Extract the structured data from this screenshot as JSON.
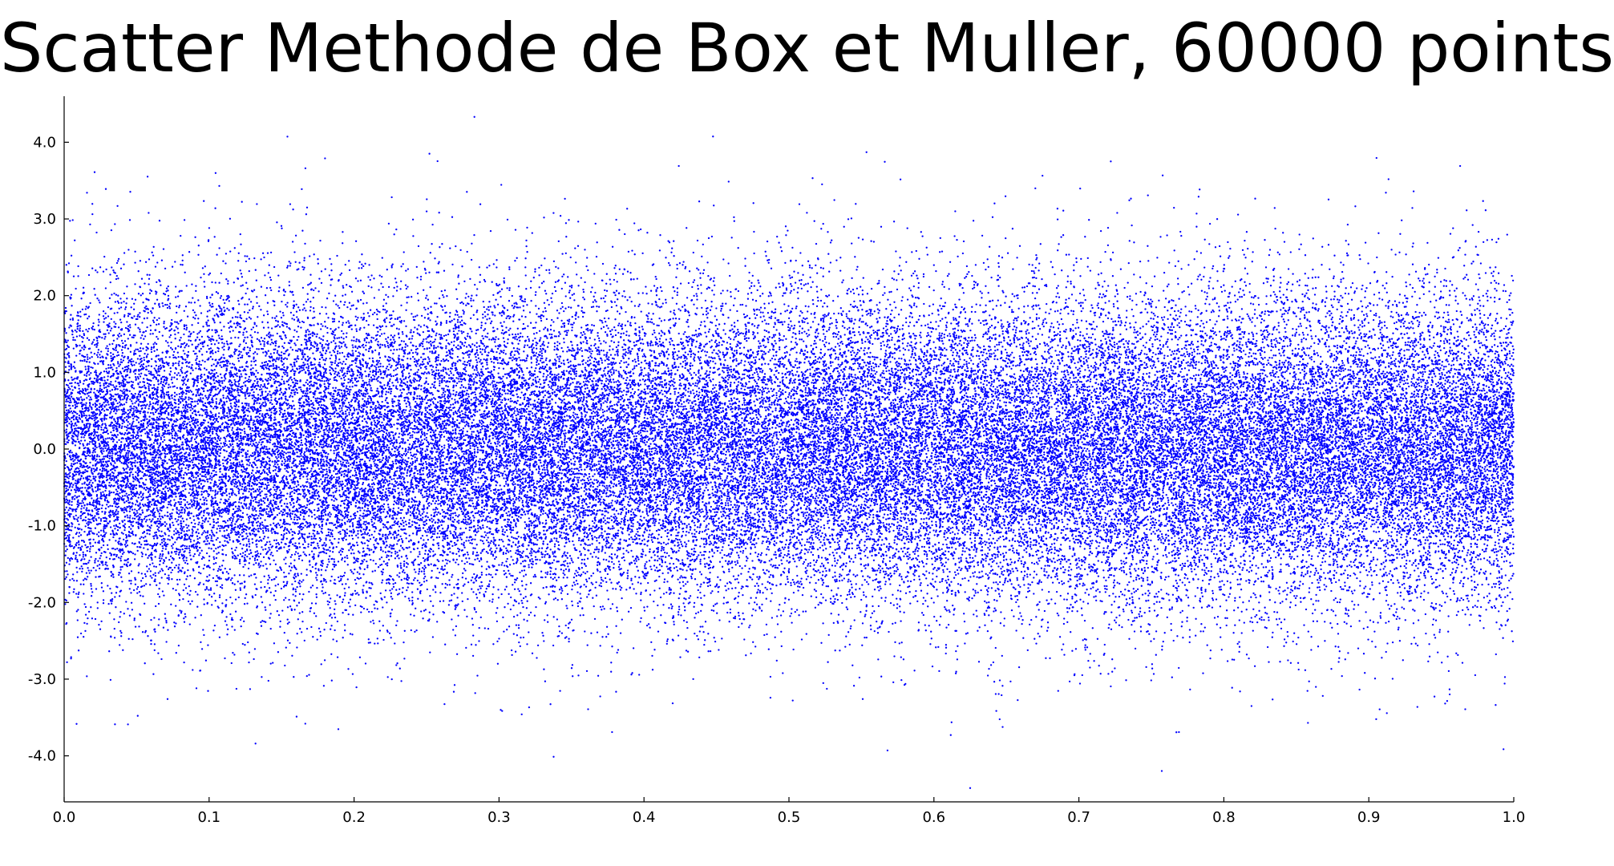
{
  "chart_data": {
    "type": "scatter",
    "title": "Scatter Methode de Box et Muller, 60000 points",
    "xlabel": "",
    "ylabel": "",
    "xlim": [
      0.0,
      1.0
    ],
    "ylim": [
      -4.6,
      4.6
    ],
    "x_ticks": [
      "0.0",
      "0.1",
      "0.2",
      "0.3",
      "0.4",
      "0.5",
      "0.6",
      "0.7",
      "0.8",
      "0.9",
      "1.0"
    ],
    "y_ticks": [
      "4.0",
      "3.0",
      "2.0",
      "1.0",
      "0.0",
      "-1.0",
      "-2.0",
      "-3.0",
      "-4.0"
    ],
    "x_tick_values": [
      0.0,
      0.1,
      0.2,
      0.3,
      0.4,
      0.5,
      0.6,
      0.7,
      0.8,
      0.9,
      1.0
    ],
    "y_tick_values": [
      4.0,
      3.0,
      2.0,
      1.0,
      0.0,
      -1.0,
      -2.0,
      -3.0,
      -4.0
    ],
    "grid": false,
    "legend": "none",
    "marker_color": "#0000ff",
    "point_count": 60000,
    "distribution": {
      "x": "uniform on [0, 1]",
      "y": "standard normal (mean 0, std 1)"
    },
    "series": [
      {
        "points_sample": [
          [
            0.283,
            4.33
          ],
          [
            0.625,
            -4.42
          ],
          [
            0.252,
            3.85
          ],
          [
            0.18,
            3.79
          ],
          [
            0.568,
            -3.93
          ],
          [
            0.132,
            -3.84
          ],
          [
            0.722,
            3.75
          ],
          [
            0.963,
            3.69
          ],
          [
            0.424,
            3.69
          ],
          [
            0.021,
            3.61
          ],
          [
            0.044,
            -3.59
          ],
          [
            0.378,
            -3.69
          ],
          [
            0.769,
            -3.69
          ],
          [
            0.858,
            -3.57
          ],
          [
            0.107,
            3.43
          ],
          [
            0.002,
            -2.78
          ]
        ]
      }
    ]
  }
}
